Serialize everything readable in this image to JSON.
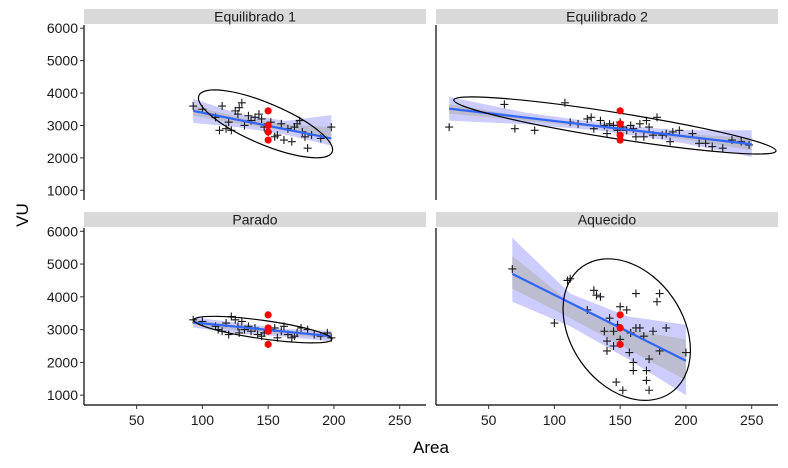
{
  "chart_data": {
    "type": "scatter",
    "xlabel": "Area",
    "ylabel": "VU",
    "xlim": [
      10,
      270
    ],
    "ylim": [
      700,
      6100
    ],
    "xticks": [
      50,
      100,
      150,
      200,
      250
    ],
    "yticks": [
      1000,
      2000,
      3000,
      4000,
      5000,
      6000
    ],
    "colors": {
      "points": "#1a1a1a",
      "highlight": "#ff0000",
      "fit_line": "#3366ff",
      "band_outer": "#9999ff",
      "band_inner": "#b3b3b3",
      "strip": "#d9d9d9",
      "ellipse": "#000000"
    },
    "panels": [
      {
        "label": "Equilibrado 1",
        "points": [
          [
            93,
            3600
          ],
          [
            100,
            3500
          ],
          [
            110,
            3250
          ],
          [
            113,
            2850
          ],
          [
            115,
            3600
          ],
          [
            118,
            2900
          ],
          [
            120,
            3100
          ],
          [
            122,
            2850
          ],
          [
            125,
            3450
          ],
          [
            127,
            3350
          ],
          [
            128,
            3550
          ],
          [
            130,
            3700
          ],
          [
            132,
            3000
          ],
          [
            135,
            3300
          ],
          [
            137,
            3150
          ],
          [
            140,
            3250
          ],
          [
            143,
            3350
          ],
          [
            145,
            3200
          ],
          [
            147,
            2950
          ],
          [
            150,
            2800
          ],
          [
            152,
            3100
          ],
          [
            155,
            2650
          ],
          [
            157,
            2700
          ],
          [
            160,
            3050
          ],
          [
            162,
            2550
          ],
          [
            165,
            2900
          ],
          [
            168,
            2500
          ],
          [
            170,
            2950
          ],
          [
            172,
            3050
          ],
          [
            174,
            3150
          ],
          [
            176,
            2800
          ],
          [
            178,
            2650
          ],
          [
            180,
            2300
          ],
          [
            183,
            2700
          ],
          [
            190,
            2600
          ],
          [
            198,
            2950
          ]
        ],
        "highlight": [
          [
            150,
            2550
          ],
          [
            150,
            2800
          ],
          [
            150,
            3000
          ],
          [
            150,
            3450
          ]
        ],
        "fit": {
          "x": [
            93,
            198
          ],
          "y": [
            3450,
            2600
          ]
        },
        "band_outer": {
          "upper": [
            3820,
            3360,
            3140,
            3320
          ],
          "lower": [
            3080,
            2940,
            2720,
            2380
          ]
        },
        "band_inner": {
          "upper": [
            3600,
            3250,
            3030,
            2950
          ],
          "lower": [
            3300,
            3050,
            2830,
            2650
          ]
        },
        "ellipse": {
          "cx": 148,
          "cy": 3050,
          "rx": 55,
          "ry": 630,
          "tilt_deg": 23
        }
      },
      {
        "label": "Equilibrado 2",
        "points": [
          [
            20,
            2950
          ],
          [
            62,
            3650
          ],
          [
            70,
            2900
          ],
          [
            85,
            2850
          ],
          [
            108,
            3700
          ],
          [
            112,
            3100
          ],
          [
            118,
            3050
          ],
          [
            125,
            3200
          ],
          [
            128,
            3250
          ],
          [
            130,
            2900
          ],
          [
            135,
            3150
          ],
          [
            138,
            3000
          ],
          [
            140,
            2750
          ],
          [
            142,
            3050
          ],
          [
            145,
            3000
          ],
          [
            148,
            2850
          ],
          [
            150,
            3100
          ],
          [
            152,
            2950
          ],
          [
            155,
            2850
          ],
          [
            158,
            3000
          ],
          [
            160,
            2900
          ],
          [
            162,
            2650
          ],
          [
            165,
            3050
          ],
          [
            168,
            2650
          ],
          [
            170,
            3150
          ],
          [
            172,
            2950
          ],
          [
            175,
            2700
          ],
          [
            178,
            3250
          ],
          [
            182,
            2700
          ],
          [
            185,
            2750
          ],
          [
            188,
            2500
          ],
          [
            190,
            2800
          ],
          [
            195,
            2850
          ],
          [
            205,
            2750
          ],
          [
            210,
            2450
          ],
          [
            215,
            2450
          ],
          [
            220,
            2350
          ],
          [
            228,
            2300
          ],
          [
            235,
            2550
          ],
          [
            242,
            2500
          ],
          [
            248,
            2400
          ]
        ],
        "highlight": [
          [
            150,
            2550
          ],
          [
            150,
            2700
          ],
          [
            150,
            3050
          ],
          [
            150,
            3450
          ]
        ],
        "fit": {
          "x": [
            20,
            250
          ],
          "y": [
            3520,
            2420
          ]
        },
        "band_outer": {
          "upper": [
            3880,
            3400,
            3080,
            2850,
            2850
          ],
          "lower": [
            3150,
            3040,
            2840,
            2500,
            2030
          ]
        },
        "band_inner": {
          "upper": [
            3660,
            3270,
            2980,
            2750,
            2620
          ],
          "lower": [
            3360,
            3150,
            2920,
            2610,
            2230
          ]
        },
        "ellipse": {
          "cx": 146,
          "cy": 3000,
          "rx": 124,
          "ry": 400,
          "tilt_deg": 9
        }
      },
      {
        "label": "Parado",
        "points": [
          [
            93,
            3300
          ],
          [
            100,
            3250
          ],
          [
            110,
            3100
          ],
          [
            112,
            3000
          ],
          [
            115,
            2950
          ],
          [
            118,
            3200
          ],
          [
            120,
            2850
          ],
          [
            122,
            3400
          ],
          [
            125,
            3300
          ],
          [
            127,
            3100
          ],
          [
            128,
            2900
          ],
          [
            130,
            3250
          ],
          [
            132,
            3000
          ],
          [
            135,
            3100
          ],
          [
            137,
            2950
          ],
          [
            140,
            3050
          ],
          [
            142,
            2850
          ],
          [
            145,
            2800
          ],
          [
            147,
            2900
          ],
          [
            152,
            3000
          ],
          [
            155,
            3050
          ],
          [
            157,
            2750
          ],
          [
            160,
            2950
          ],
          [
            162,
            3100
          ],
          [
            165,
            2850
          ],
          [
            168,
            2750
          ],
          [
            170,
            2800
          ],
          [
            172,
            2900
          ],
          [
            175,
            3050
          ],
          [
            180,
            3000
          ],
          [
            185,
            2850
          ],
          [
            190,
            2800
          ],
          [
            195,
            2900
          ],
          [
            198,
            2750
          ]
        ],
        "highlight": [
          [
            150,
            2550
          ],
          [
            150,
            2950
          ],
          [
            150,
            3050
          ],
          [
            150,
            3450
          ]
        ],
        "fit": {
          "x": [
            93,
            198
          ],
          "y": [
            3220,
            2800
          ]
        },
        "band_outer": {
          "upper": [
            3380,
            3200,
            3020,
            2960
          ],
          "lower": [
            3060,
            2880,
            2780,
            2640
          ]
        },
        "band_inner": {
          "upper": [
            3290,
            3120,
            2960,
            2880
          ],
          "lower": [
            3150,
            2960,
            2840,
            2720
          ]
        },
        "ellipse": {
          "cx": 146,
          "cy": 3000,
          "rx": 53,
          "ry": 280,
          "tilt_deg": 8
        }
      },
      {
        "label": "Aquecido",
        "points": [
          [
            68,
            4850
          ],
          [
            100,
            3200
          ],
          [
            110,
            4500
          ],
          [
            112,
            4550
          ],
          [
            125,
            3600
          ],
          [
            130,
            4200
          ],
          [
            132,
            4050
          ],
          [
            135,
            4000
          ],
          [
            138,
            2950
          ],
          [
            140,
            2650
          ],
          [
            140,
            2350
          ],
          [
            142,
            3350
          ],
          [
            145,
            2500
          ],
          [
            145,
            2950
          ],
          [
            147,
            1400
          ],
          [
            148,
            3150
          ],
          [
            150,
            3700
          ],
          [
            150,
            2700
          ],
          [
            152,
            1150
          ],
          [
            155,
            3600
          ],
          [
            157,
            2300
          ],
          [
            158,
            2900
          ],
          [
            160,
            1750
          ],
          [
            160,
            2000
          ],
          [
            162,
            4100
          ],
          [
            162,
            3050
          ],
          [
            165,
            3050
          ],
          [
            168,
            2800
          ],
          [
            170,
            1450
          ],
          [
            170,
            1750
          ],
          [
            172,
            1150
          ],
          [
            172,
            2100
          ],
          [
            175,
            2950
          ],
          [
            178,
            3850
          ],
          [
            180,
            4100
          ],
          [
            180,
            2350
          ],
          [
            185,
            3050
          ],
          [
            200,
            2300
          ]
        ],
        "highlight": [
          [
            150,
            2550
          ],
          [
            150,
            3050
          ],
          [
            150,
            3450
          ]
        ],
        "fit": {
          "x": [
            68,
            200
          ],
          "y": [
            4700,
            2050
          ]
        },
        "band_outer": {
          "upper": [
            5800,
            4100,
            3400,
            3150
          ],
          "lower": [
            3850,
            3100,
            2100,
            1000
          ]
        },
        "band_inner": {
          "upper": [
            5250,
            3820,
            3000,
            2700
          ],
          "lower": [
            4250,
            3350,
            2400,
            1450
          ]
        },
        "ellipse": {
          "cx": 155,
          "cy": 3000,
          "rx": 1600,
          "ry": 40,
          "tilt_deg": 0
        }
      }
    ]
  }
}
